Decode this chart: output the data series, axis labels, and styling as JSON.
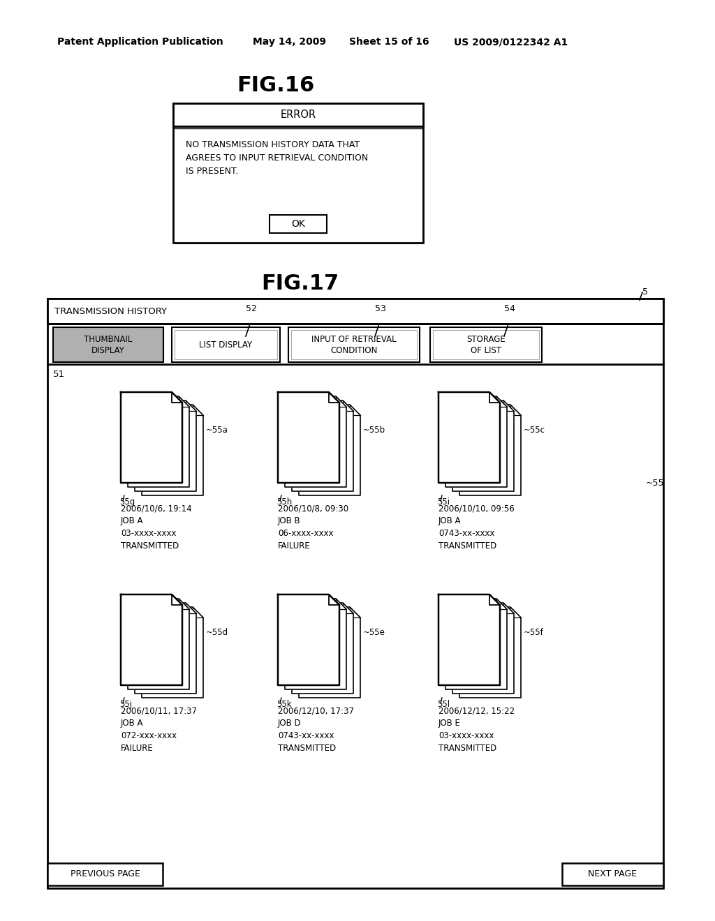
{
  "bg_color": "#ffffff",
  "header_text": "Patent Application Publication",
  "header_date": "May 14, 2009",
  "header_sheet": "Sheet 15 of 16",
  "header_patent": "US 2009/0122342 A1",
  "fig16_title": "FIG.16",
  "fig17_title": "FIG.17",
  "error_dialog_title": "ERROR",
  "error_dialog_message": "NO TRANSMISSION HISTORY DATA THAT\nAGREES TO INPUT RETRIEVAL CONDITION\nIS PRESENT.",
  "ok_button": "OK",
  "transmission_history_label": "TRANSMISSION HISTORY",
  "tab_numbers": [
    "52",
    "53",
    "54"
  ],
  "label_5": "5",
  "label_51": "51",
  "label_55": "55",
  "doc_groups_row1": [
    {
      "label_top": "55a",
      "label_bottom": "55g",
      "date": "2006/10/6, 19:14",
      "job": "JOB A",
      "phone": "03-xxxx-xxxx",
      "status": "TRANSMITTED"
    },
    {
      "label_top": "55b",
      "label_bottom": "55h",
      "date": "2006/10/8, 09:30",
      "job": "JOB B",
      "phone": "06-xxxx-xxxx",
      "status": "FAILURE"
    },
    {
      "label_top": "55c",
      "label_bottom": "55i",
      "date": "2006/10/10, 09:56",
      "job": "JOB A",
      "phone": "0743-xx-xxxx",
      "status": "TRANSMITTED"
    }
  ],
  "doc_groups_row2": [
    {
      "label_top": "55d",
      "label_bottom": "55j",
      "date": "2006/10/11, 17:37",
      "job": "JOB A",
      "phone": "072-xxx-xxxx",
      "status": "FAILURE"
    },
    {
      "label_top": "55e",
      "label_bottom": "55k",
      "date": "2006/12/10, 17:37",
      "job": "JOB D",
      "phone": "0743-xx-xxxx",
      "status": "TRANSMITTED"
    },
    {
      "label_top": "55f",
      "label_bottom": "55l",
      "date": "2006/12/12, 15:22",
      "job": "JOB E",
      "phone": "03-xxxx-xxxx",
      "status": "TRANSMITTED"
    }
  ],
  "prev_page": "PREVIOUS PAGE",
  "next_page": "NEXT PAGE"
}
